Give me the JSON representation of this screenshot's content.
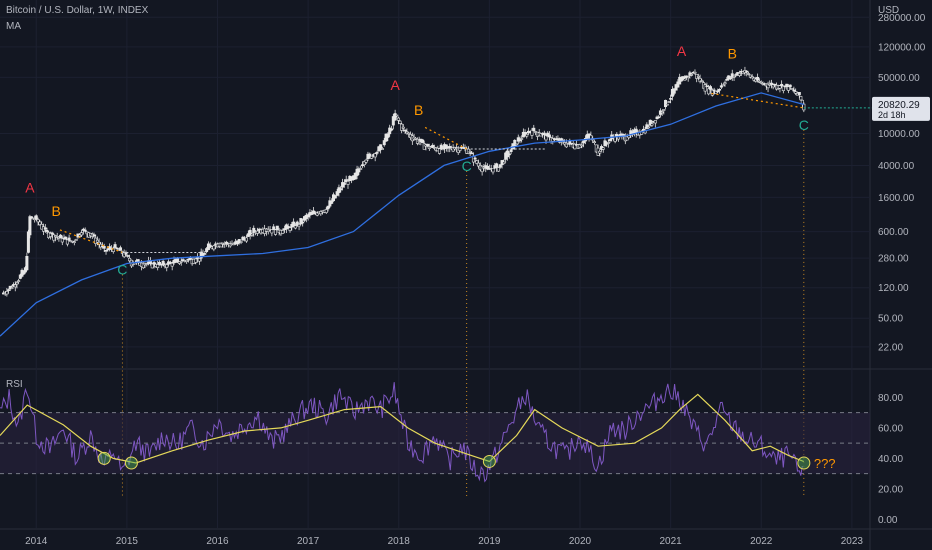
{
  "header": {
    "title": "Bitcoin / U.S. Dollar, 1W, INDEX",
    "indicator": "MA"
  },
  "price_panel": {
    "currency": "USD",
    "last_price": "20820.29",
    "countdown": "2d 18h"
  },
  "rsi_panel": {
    "label": "RSI",
    "question_annotation": "???"
  },
  "colors": {
    "background": "#131722",
    "grid": "#1c2030",
    "candle": "#e6e6e6",
    "ma_line": "#2f6fe0",
    "rsi_line": "#7e57c2",
    "rsi_ma_line": "#e5d95a",
    "rsi_band": "#2a2340",
    "label_a": "#f23645",
    "label_b": "#ff9800",
    "label_c": "#22ab94",
    "axis_text": "#b2b5be"
  },
  "chart_data": [
    {
      "type": "line",
      "title": "Bitcoin / U.S. Dollar, 1W, INDEX",
      "scale": "log",
      "ylabel": "USD",
      "ylim": [
        12,
        460000
      ],
      "xlim": [
        2013.6,
        2023.2
      ],
      "y_ticks": [
        "280000.00",
        "120000.00",
        "50000.00",
        "10000.00",
        "4000.00",
        "1600.00",
        "600.00",
        "280.00",
        "120.00",
        "50.00",
        "22.00"
      ],
      "x_ticks": [
        "2014",
        "2015",
        "2016",
        "2017",
        "2018",
        "2019",
        "2020",
        "2021",
        "2022",
        "2023"
      ],
      "last_value": 20820.29,
      "series": [
        {
          "role": "price",
          "x": [
            2013.62,
            2013.75,
            2013.88,
            2013.93,
            2014.0,
            2014.1,
            2014.25,
            2014.4,
            2014.5,
            2014.6,
            2014.75,
            2014.85,
            2014.95,
            2015.05,
            2015.2,
            2015.4,
            2015.6,
            2015.8,
            2015.9,
            2016.0,
            2016.2,
            2016.4,
            2016.5,
            2016.7,
            2016.9,
            2017.0,
            2017.2,
            2017.4,
            2017.5,
            2017.6,
            2017.8,
            2017.9,
            2017.96,
            2018.05,
            2018.15,
            2018.3,
            2018.45,
            2018.6,
            2018.75,
            2018.88,
            2018.96,
            2019.1,
            2019.3,
            2019.45,
            2019.55,
            2019.7,
            2019.85,
            2020.0,
            2020.1,
            2020.2,
            2020.35,
            2020.5,
            2020.7,
            2020.85,
            2021.0,
            2021.1,
            2021.25,
            2021.4,
            2021.5,
            2021.6,
            2021.8,
            2021.9,
            2022.0,
            2022.15,
            2022.3,
            2022.42,
            2022.47
          ],
          "values": [
            100,
            130,
            200,
            900,
            850,
            600,
            500,
            450,
            620,
            560,
            350,
            380,
            330,
            250,
            240,
            230,
            260,
            280,
            380,
            430,
            420,
            600,
            650,
            620,
            750,
            960,
            1150,
            2500,
            2700,
            4500,
            6500,
            11000,
            17000,
            11000,
            9000,
            7000,
            6400,
            6700,
            6400,
            4000,
            3600,
            3800,
            8000,
            11000,
            10000,
            8500,
            7500,
            7200,
            9500,
            6000,
            9000,
            9200,
            11000,
            16000,
            29000,
            45000,
            58000,
            36000,
            33000,
            46000,
            61000,
            49000,
            42000,
            40000,
            38000,
            29000,
            20820
          ]
        },
        {
          "role": "moving_average",
          "x": [
            2013.6,
            2014.0,
            2014.5,
            2015.0,
            2015.5,
            2016.0,
            2016.5,
            2017.0,
            2017.5,
            2018.0,
            2018.5,
            2019.0,
            2019.5,
            2020.0,
            2020.5,
            2021.0,
            2021.5,
            2022.0,
            2022.47
          ],
          "values": [
            30,
            78,
            150,
            240,
            280,
            300,
            320,
            380,
            600,
            1700,
            4000,
            6000,
            7600,
            8300,
            9300,
            13000,
            22000,
            32000,
            23000
          ]
        }
      ],
      "annotations": [
        {
          "text": "A",
          "x": 2013.93,
          "color": "red"
        },
        {
          "text": "B",
          "x": 2014.22,
          "color": "orange"
        },
        {
          "text": "C",
          "x": 2014.95,
          "color": "green"
        },
        {
          "text": "A",
          "x": 2017.96,
          "color": "red"
        },
        {
          "text": "B",
          "x": 2018.22,
          "color": "orange"
        },
        {
          "text": "C",
          "x": 2018.75,
          "color": "green"
        },
        {
          "text": "A",
          "x": 2021.12,
          "color": "red"
        },
        {
          "text": "B",
          "x": 2021.68,
          "color": "orange"
        },
        {
          "text": "C",
          "x": 2022.47,
          "color": "green"
        }
      ]
    },
    {
      "type": "line",
      "title": "RSI",
      "ylim": [
        -5,
        98
      ],
      "y_ticks": [
        "80.00",
        "60.00",
        "40.00",
        "20.00",
        "0.00"
      ],
      "bands": [
        30,
        70
      ],
      "series": [
        {
          "role": "rsi",
          "x": [
            2013.6,
            2013.7,
            2013.8,
            2013.9,
            2014.0,
            2014.15,
            2014.3,
            2014.45,
            2014.6,
            2014.75,
            2014.85,
            2014.95,
            2015.1,
            2015.25,
            2015.4,
            2015.55,
            2015.7,
            2015.85,
            2016.0,
            2016.15,
            2016.3,
            2016.45,
            2016.6,
            2016.75,
            2016.9,
            2017.05,
            2017.2,
            2017.35,
            2017.5,
            2017.65,
            2017.8,
            2017.95,
            2018.1,
            2018.25,
            2018.4,
            2018.55,
            2018.7,
            2018.85,
            2018.95,
            2019.1,
            2019.25,
            2019.4,
            2019.55,
            2019.7,
            2019.85,
            2020.0,
            2020.2,
            2020.35,
            2020.5,
            2020.65,
            2020.8,
            2020.95,
            2021.1,
            2021.25,
            2021.4,
            2021.55,
            2021.7,
            2021.85,
            2022.0,
            2022.15,
            2022.3,
            2022.42,
            2022.47
          ],
          "values": [
            70,
            80,
            60,
            88,
            55,
            45,
            60,
            40,
            55,
            35,
            45,
            30,
            50,
            42,
            55,
            48,
            60,
            50,
            65,
            55,
            62,
            68,
            50,
            58,
            70,
            75,
            68,
            82,
            70,
            78,
            72,
            84,
            50,
            42,
            55,
            38,
            48,
            32,
            30,
            45,
            65,
            82,
            58,
            48,
            42,
            55,
            35,
            60,
            58,
            70,
            75,
            85,
            80,
            60,
            48,
            72,
            60,
            52,
            48,
            38,
            42,
            30,
            30
          ]
        },
        {
          "role": "rsi_moving_average",
          "x": [
            2013.6,
            2013.9,
            2014.3,
            2014.6,
            2014.85,
            2015.1,
            2015.5,
            2015.9,
            2016.3,
            2016.7,
            2017.0,
            2017.4,
            2017.8,
            2018.1,
            2018.4,
            2018.8,
            2019.0,
            2019.3,
            2019.5,
            2019.8,
            2020.2,
            2020.6,
            2020.9,
            2021.1,
            2021.3,
            2021.6,
            2021.9,
            2022.1,
            2022.3,
            2022.47
          ],
          "values": [
            55,
            75,
            62,
            48,
            40,
            37,
            45,
            52,
            58,
            60,
            65,
            72,
            74,
            60,
            50,
            42,
            38,
            55,
            72,
            60,
            48,
            50,
            60,
            72,
            82,
            65,
            45,
            48,
            42,
            38
          ]
        }
      ]
    }
  ]
}
